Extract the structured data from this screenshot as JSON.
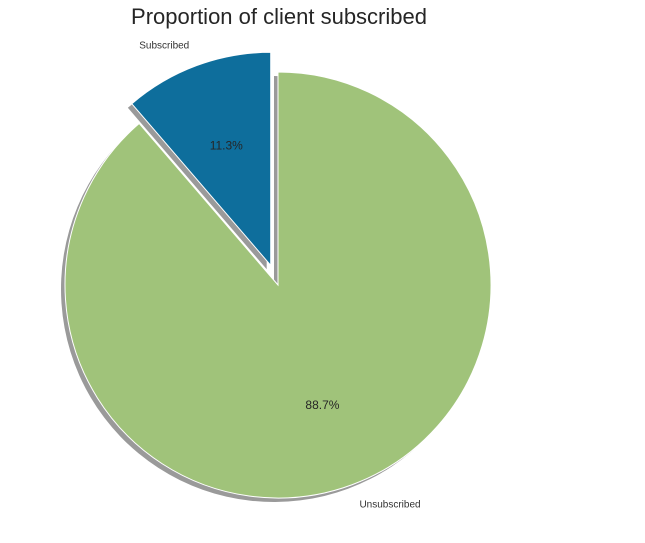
{
  "chart_data": {
    "type": "pie",
    "title": "Proportion of client subscribed",
    "categories": [
      "Subscribed",
      "Unsubscribed"
    ],
    "values": [
      11.3,
      88.7
    ],
    "labels": [
      "11.3%",
      "88.7%"
    ],
    "colors": [
      "#0e6e9c",
      "#a0c37a"
    ],
    "shadow_color": "#9a9a9a",
    "explode": [
      0.1,
      0
    ],
    "start_angle_deg": 90,
    "shadow": true
  }
}
